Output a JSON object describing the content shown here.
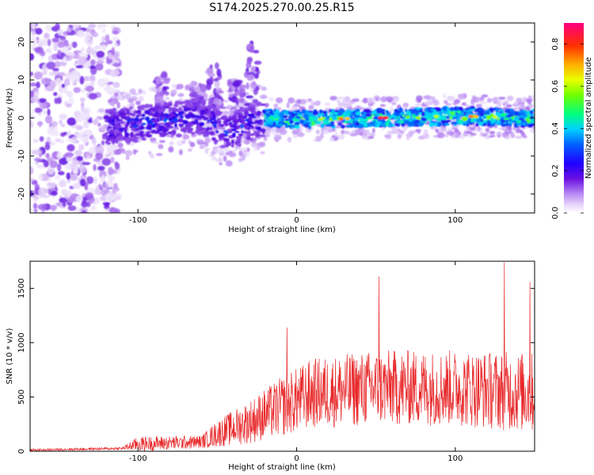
{
  "chart_data": [
    {
      "type": "heatmap",
      "title": "S174.2025.270.00.25.R15",
      "xlabel": "Height of straight line (km)",
      "ylabel": "Frequency (Hz)",
      "xlim": [
        -168,
        150
      ],
      "ylim": [
        -25,
        25
      ],
      "xticks": [
        -100,
        0,
        100
      ],
      "yticks": [
        -20,
        -10,
        0,
        10,
        20
      ],
      "colorbar": {
        "label": "Normalized spectral amplitude",
        "range": [
          0,
          0.9
        ],
        "ticks": [
          "0.0",
          "0.2",
          "0.4",
          "0.6",
          "0.8"
        ],
        "colormap": [
          "#ffffff",
          "#d9c2f5",
          "#9b59f0",
          "#5a00d8",
          "#0000ff",
          "#00c8ff",
          "#00ff7f",
          "#c8ff00",
          "#ffd000",
          "#ff5a00",
          "#ff0078"
        ]
      },
      "ridge": [
        {
          "x": -120,
          "f": -2.5
        },
        {
          "x": -90,
          "f": -1.0
        },
        {
          "x": -60,
          "f": 0.5
        },
        {
          "x": -45,
          "f": -4.0
        },
        {
          "x": -20,
          "f": 0.0
        },
        {
          "x": 0,
          "f": -0.5
        },
        {
          "x": 50,
          "f": 0.0
        },
        {
          "x": 100,
          "f": 0.5
        },
        {
          "x": 150,
          "f": 0.0
        }
      ]
    },
    {
      "type": "line",
      "title": "",
      "xlabel": "Height of straight line (km)",
      "ylabel": "SNR (10 * v/v)",
      "xlim": [
        -168,
        150
      ],
      "ylim": [
        0,
        1750
      ],
      "xticks": [
        -100,
        0,
        100
      ],
      "yticks": [
        0,
        500,
        1000,
        1500
      ],
      "color": "#e8282a",
      "envelope": [
        {
          "x": -168,
          "base": 10,
          "spread": 20
        },
        {
          "x": -110,
          "base": 25,
          "spread": 25
        },
        {
          "x": -100,
          "base": 60,
          "spread": 140
        },
        {
          "x": -60,
          "base": 80,
          "spread": 120
        },
        {
          "x": -50,
          "base": 150,
          "spread": 250
        },
        {
          "x": -30,
          "base": 250,
          "spread": 400
        },
        {
          "x": -10,
          "base": 380,
          "spread": 550
        },
        {
          "x": 10,
          "base": 500,
          "spread": 650
        },
        {
          "x": 50,
          "base": 550,
          "spread": 700
        },
        {
          "x": 100,
          "base": 550,
          "spread": 700
        },
        {
          "x": 150,
          "base": 500,
          "spread": 750
        }
      ],
      "peaks": [
        {
          "x": 52,
          "y": 1610
        },
        {
          "x": 131,
          "y": 1740
        },
        {
          "x": 147,
          "y": 1560
        },
        {
          "x": -6,
          "y": 1140
        }
      ]
    }
  ]
}
